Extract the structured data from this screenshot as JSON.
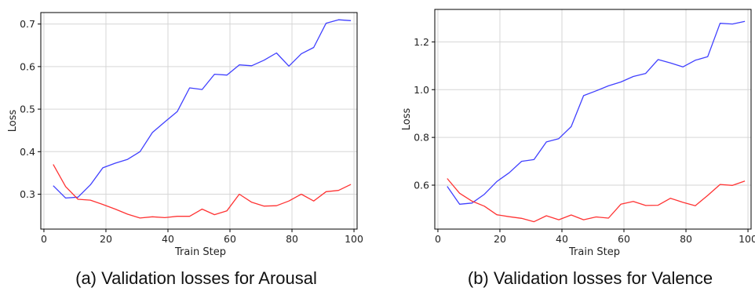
{
  "chart_data": [
    {
      "type": "line",
      "caption": "(a) Validation losses for Arousal",
      "xlabel": "Train Step",
      "ylabel": "Loss",
      "xlim": [
        -1,
        101
      ],
      "ylim": [
        0.218,
        0.727
      ],
      "xticks": [
        0,
        20,
        40,
        60,
        80,
        100
      ],
      "yticks": [
        0.3,
        0.4,
        0.5,
        0.6,
        0.7
      ],
      "xtick_labels": [
        "0",
        "20",
        "40",
        "60",
        "80",
        "100"
      ],
      "ytick_labels": [
        "0.3",
        "0.4",
        "0.5",
        "0.6",
        "0.7"
      ],
      "grid": true,
      "series": [
        {
          "color": "#4040ff",
          "x": [
            3,
            7,
            11,
            15,
            19,
            23,
            27,
            31,
            35,
            39,
            43,
            47,
            51,
            55,
            59,
            63,
            67,
            71,
            75,
            79,
            83,
            87,
            91,
            95,
            99
          ],
          "y": [
            0.32,
            0.291,
            0.293,
            0.322,
            0.362,
            0.373,
            0.382,
            0.4,
            0.445,
            0.47,
            0.494,
            0.55,
            0.546,
            0.582,
            0.58,
            0.604,
            0.602,
            0.615,
            0.632,
            0.601,
            0.63,
            0.645,
            0.702,
            0.71,
            0.708
          ]
        },
        {
          "color": "#ff3333",
          "x": [
            3,
            7,
            11,
            15,
            19,
            23,
            27,
            31,
            35,
            39,
            43,
            47,
            51,
            55,
            59,
            63,
            67,
            71,
            75,
            79,
            83,
            87,
            91,
            95,
            99
          ],
          "y": [
            0.37,
            0.318,
            0.288,
            0.286,
            0.276,
            0.265,
            0.253,
            0.244,
            0.247,
            0.245,
            0.248,
            0.248,
            0.265,
            0.252,
            0.261,
            0.3,
            0.281,
            0.272,
            0.273,
            0.284,
            0.3,
            0.284,
            0.306,
            0.309,
            0.323
          ]
        }
      ]
    },
    {
      "type": "line",
      "caption": "(b) Validation losses for Valence",
      "xlabel": "Train Step",
      "ylabel": "Loss",
      "xlim": [
        -1,
        101
      ],
      "ylim": [
        0.416,
        1.336
      ],
      "xticks": [
        0,
        20,
        40,
        60,
        80,
        100
      ],
      "yticks": [
        0.6,
        0.8,
        1.0,
        1.2
      ],
      "xtick_labels": [
        "0",
        "20",
        "40",
        "60",
        "80",
        "100"
      ],
      "ytick_labels": [
        "0.6",
        "0.8",
        "1.0",
        "1.2"
      ],
      "grid": true,
      "series": [
        {
          "color": "#4040ff",
          "x": [
            3,
            7,
            11,
            15,
            19,
            23,
            27,
            31,
            35,
            39,
            43,
            47,
            51,
            55,
            59,
            63,
            67,
            71,
            75,
            79,
            83,
            87,
            91,
            95,
            99
          ],
          "y": [
            0.595,
            0.52,
            0.525,
            0.562,
            0.615,
            0.652,
            0.7,
            0.707,
            0.781,
            0.795,
            0.845,
            0.975,
            0.995,
            1.016,
            1.032,
            1.055,
            1.068,
            1.126,
            1.112,
            1.095,
            1.123,
            1.138,
            1.278,
            1.275,
            1.286
          ]
        },
        {
          "color": "#ff3333",
          "x": [
            3,
            7,
            11,
            15,
            19,
            23,
            27,
            31,
            35,
            39,
            43,
            47,
            51,
            55,
            59,
            63,
            67,
            71,
            75,
            79,
            83,
            87,
            91,
            95,
            99
          ],
          "y": [
            0.628,
            0.566,
            0.533,
            0.512,
            0.476,
            0.468,
            0.461,
            0.447,
            0.472,
            0.455,
            0.475,
            0.455,
            0.467,
            0.462,
            0.52,
            0.532,
            0.515,
            0.516,
            0.545,
            0.528,
            0.514,
            0.557,
            0.603,
            0.599,
            0.617
          ]
        }
      ]
    }
  ]
}
